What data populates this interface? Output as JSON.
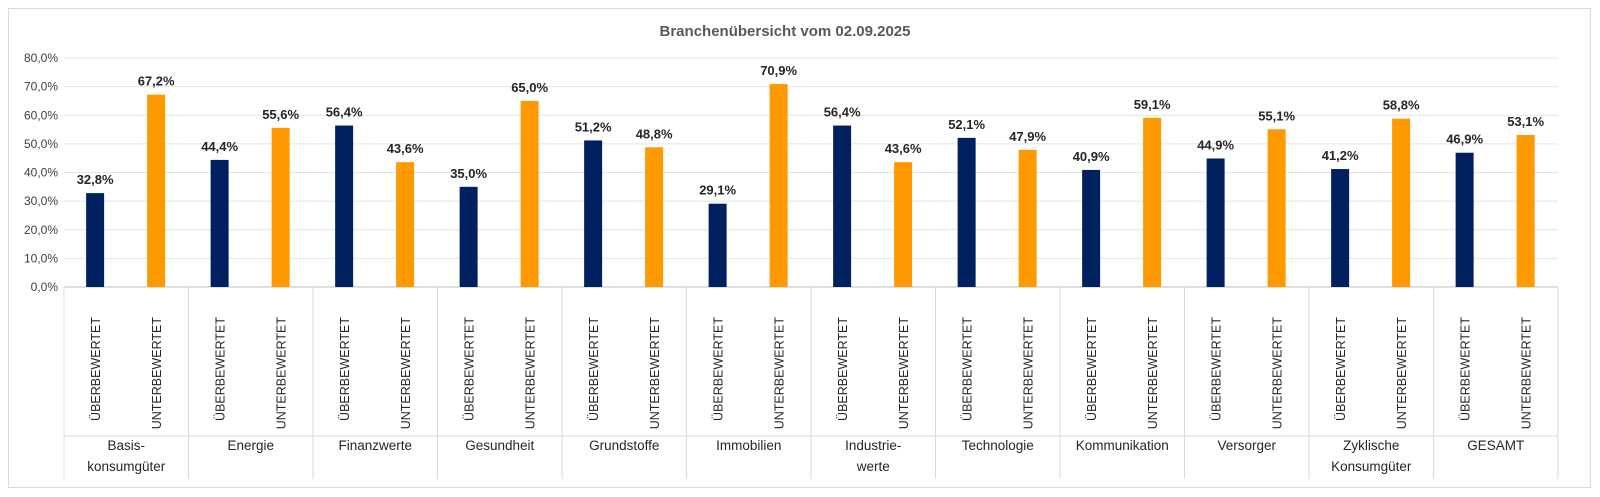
{
  "chart_data": {
    "type": "bar",
    "title": "Branchenübersicht vom 02.09.2025",
    "y_axis": {
      "min": 0,
      "max": 80,
      "step": 10,
      "tick_labels": [
        "0,0%",
        "10,0%",
        "20,0%",
        "30,0%",
        "40,0%",
        "50,0%",
        "60,0%",
        "70,0%",
        "80,0%"
      ]
    },
    "grid": true,
    "series": [
      {
        "name": "ÜBERBEWERTET",
        "color": "#002060"
      },
      {
        "name": "UNTERBEWERTET",
        "color": "#ff9900"
      }
    ],
    "categories": [
      {
        "name": "Basis-\nkonsumgüter",
        "values": [
          32.8,
          67.2
        ],
        "labels": [
          "32,8%",
          "67,2%"
        ]
      },
      {
        "name": "Energie",
        "values": [
          44.4,
          55.6
        ],
        "labels": [
          "44,4%",
          "55,6%"
        ]
      },
      {
        "name": "Finanzwerte",
        "values": [
          56.4,
          43.6
        ],
        "labels": [
          "56,4%",
          "43,6%"
        ]
      },
      {
        "name": "Gesundheit",
        "values": [
          35.0,
          65.0
        ],
        "labels": [
          "35,0%",
          "65,0%"
        ]
      },
      {
        "name": "Grundstoffe",
        "values": [
          51.2,
          48.8
        ],
        "labels": [
          "51,2%",
          "48,8%"
        ]
      },
      {
        "name": "Immobilien",
        "values": [
          29.1,
          70.9
        ],
        "labels": [
          "29,1%",
          "70,9%"
        ]
      },
      {
        "name": "Industrie-\nwerte",
        "values": [
          56.4,
          43.6
        ],
        "labels": [
          "56,4%",
          "43,6%"
        ]
      },
      {
        "name": "Technologie",
        "values": [
          52.1,
          47.9
        ],
        "labels": [
          "52,1%",
          "47,9%"
        ]
      },
      {
        "name": "Kommunikation",
        "values": [
          40.9,
          59.1
        ],
        "labels": [
          "40,9%",
          "59,1%"
        ]
      },
      {
        "name": "Versorger",
        "values": [
          44.9,
          55.1
        ],
        "labels": [
          "44,9%",
          "55,1%"
        ]
      },
      {
        "name": "Zyklische\nKonsumgüter",
        "values": [
          41.2,
          58.8
        ],
        "labels": [
          "41,2%",
          "58,8%"
        ]
      },
      {
        "name": "GESAMT",
        "values": [
          46.9,
          53.1
        ],
        "labels": [
          "46,9%",
          "53,1%"
        ]
      }
    ]
  }
}
